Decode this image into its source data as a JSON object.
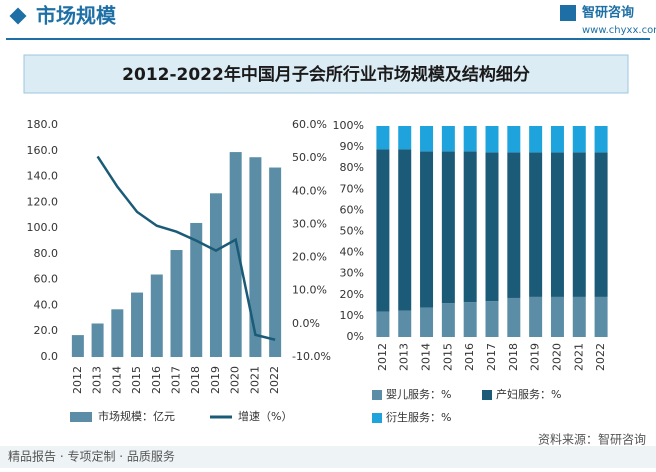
{
  "header": {
    "title": "市场规模",
    "brand": "智研咨询",
    "url": "www.chyxx.com"
  },
  "title": "2012-2022年中国月子会所行业市场规模及结构细分",
  "footer": {
    "left": "精品报告 · 专项定制 · 品质服务",
    "source": "资料来源：智研咨询"
  },
  "chart_data": [
    {
      "type": "combo",
      "categories": [
        "2012",
        "2013",
        "2014",
        "2015",
        "2016",
        "2017",
        "2018",
        "2019",
        "2020",
        "2021",
        "2022"
      ],
      "series": [
        {
          "name": "市场规模：亿元",
          "kind": "bar",
          "color": "#5b8ea6",
          "values": [
            17,
            26,
            37,
            50,
            64,
            83,
            104,
            127,
            159,
            155,
            147
          ]
        },
        {
          "name": "增速（%）",
          "kind": "line",
          "axis": "y2",
          "color": "#1b5b78",
          "values": [
            null,
            50.5,
            41.4,
            33.8,
            29.6,
            27.8,
            25.1,
            22.1,
            25.4,
            -3.3,
            -4.8
          ]
        }
      ],
      "ylim": [
        0,
        180
      ],
      "yticks": [
        {
          "value": 0,
          "label": "0.0"
        },
        {
          "value": 20,
          "label": "20.0"
        },
        {
          "value": 40,
          "label": "40.0"
        },
        {
          "value": 60,
          "label": "60.0"
        },
        {
          "value": 80,
          "label": "80.0"
        },
        {
          "value": 100,
          "label": "100.0"
        },
        {
          "value": 120,
          "label": "120.0"
        },
        {
          "value": 140,
          "label": "140.0"
        },
        {
          "value": 160,
          "label": "160.0"
        },
        {
          "value": 180,
          "label": "180.0"
        }
      ],
      "y2lim": [
        -10,
        60
      ],
      "y2ticks": [
        {
          "value": -10,
          "label": "-10.0%"
        },
        {
          "value": 0,
          "label": "0.0%"
        },
        {
          "value": 10,
          "label": "10.0%"
        },
        {
          "value": 20,
          "label": "20.0%"
        },
        {
          "value": 30,
          "label": "30.0%"
        },
        {
          "value": 40,
          "label": "40.0%"
        },
        {
          "value": 50,
          "label": "50.0%"
        },
        {
          "value": 60,
          "label": "60.0%"
        }
      ]
    },
    {
      "type": "stacked_bar",
      "categories": [
        "2012",
        "2013",
        "2014",
        "2015",
        "2016",
        "2017",
        "2018",
        "2019",
        "2020",
        "2021",
        "2022"
      ],
      "series": [
        {
          "name": "婴儿服务：%",
          "color": "#5b8ea6",
          "values": [
            12,
            12.5,
            14,
            16,
            16.5,
            17,
            18.5,
            19,
            19,
            19,
            19
          ]
        },
        {
          "name": "产妇服务：%",
          "color": "#1b5b78",
          "values": [
            77,
            76.5,
            74,
            72,
            71.5,
            70.5,
            69,
            68.5,
            68.5,
            68.5,
            68.5
          ]
        },
        {
          "name": "衍生服务：%",
          "color": "#1ea3dc",
          "values": [
            11,
            11,
            12,
            12,
            12,
            12.5,
            12.5,
            12.5,
            12.5,
            12.5,
            12.5
          ]
        }
      ],
      "ylim": [
        0,
        100
      ],
      "yticks": [
        {
          "value": 0,
          "label": "0%"
        },
        {
          "value": 10,
          "label": "10%"
        },
        {
          "value": 20,
          "label": "20%"
        },
        {
          "value": 30,
          "label": "30%"
        },
        {
          "value": 40,
          "label": "40%"
        },
        {
          "value": 50,
          "label": "50%"
        },
        {
          "value": 60,
          "label": "60%"
        },
        {
          "value": 70,
          "label": "70%"
        },
        {
          "value": 80,
          "label": "80%"
        },
        {
          "value": 90,
          "label": "90%"
        },
        {
          "value": 100,
          "label": "100%"
        }
      ]
    }
  ]
}
